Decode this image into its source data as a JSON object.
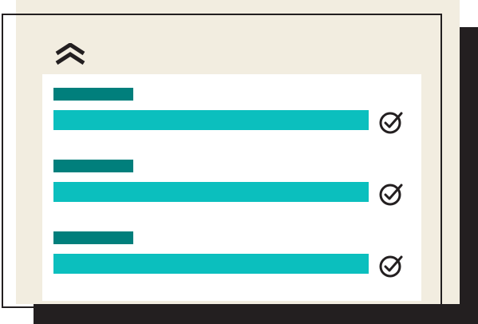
{
  "illustration": {
    "colors": {
      "dark": "#231f20",
      "cream": "#f2ede0",
      "label": "#017f7c",
      "bar": "#0bbfbe",
      "card": "#ffffff"
    },
    "collapse_icon": "double-chevron-up-icon",
    "items": [
      {
        "label_icon": "label-bar",
        "field_icon": "field-bar",
        "status_icon": "check-circle-icon"
      },
      {
        "label_icon": "label-bar",
        "field_icon": "field-bar",
        "status_icon": "check-circle-icon"
      },
      {
        "label_icon": "label-bar",
        "field_icon": "field-bar",
        "status_icon": "check-circle-icon"
      }
    ]
  }
}
